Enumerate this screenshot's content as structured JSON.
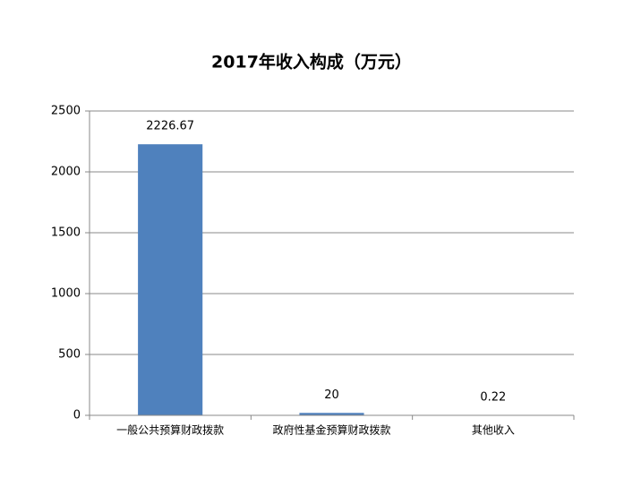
{
  "chart_data": {
    "type": "bar",
    "title": "2017年收入构成（万元）",
    "categories": [
      "一般公共预算财政拨款",
      "政府性基金预算财政拨款",
      "其他收入"
    ],
    "values": [
      2226.67,
      20,
      0.22
    ],
    "color": "#4f81bd",
    "ylim": [
      0,
      2500
    ],
    "yticks": [
      0,
      500,
      1000,
      1500,
      2000,
      2500
    ],
    "grid": true
  }
}
